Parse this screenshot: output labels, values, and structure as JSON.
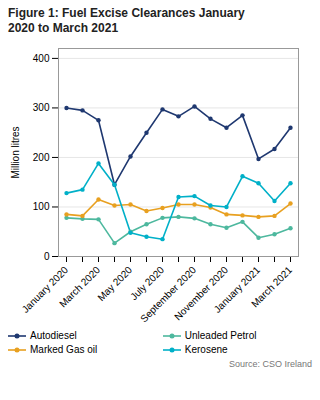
{
  "chart_data": {
    "type": "line",
    "title": "Figure 1: Fuel Excise Clearances January\n2020 to March 2021",
    "ylabel": "Million litres",
    "annotations": [
      "Source: CSO Ireland"
    ],
    "categories": [
      "January 2020",
      null,
      "March 2020",
      null,
      "May 2020",
      null,
      "July 2020",
      null,
      "September 2020",
      null,
      "November 2020",
      null,
      "January 2021",
      null,
      "March 2021"
    ],
    "series": [
      {
        "name": "Autodiesel",
        "color": "#1f3870",
        "values": [
          300,
          295,
          275,
          145,
          202,
          250,
          297,
          283,
          303,
          278,
          260,
          285,
          197,
          217,
          260
        ]
      },
      {
        "name": "Unleaded Petrol",
        "color": "#4db89e",
        "values": [
          78,
          76,
          75,
          27,
          50,
          65,
          78,
          80,
          77,
          65,
          58,
          70,
          38,
          45,
          57
        ]
      },
      {
        "name": "Marked Gas oil",
        "color": "#e8a020",
        "values": [
          85,
          82,
          115,
          103,
          105,
          92,
          98,
          105,
          105,
          99,
          85,
          83,
          80,
          82,
          107
        ]
      },
      {
        "name": "Kerosene",
        "color": "#00b0c8",
        "values": [
          128,
          135,
          188,
          145,
          48,
          40,
          35,
          120,
          122,
          103,
          100,
          162,
          148,
          112,
          148
        ]
      }
    ],
    "marker": "circle",
    "ylim": [
      0,
      420
    ],
    "yticks": [
      0,
      100,
      200,
      300,
      400
    ],
    "grid": true,
    "legend": "bottom"
  }
}
